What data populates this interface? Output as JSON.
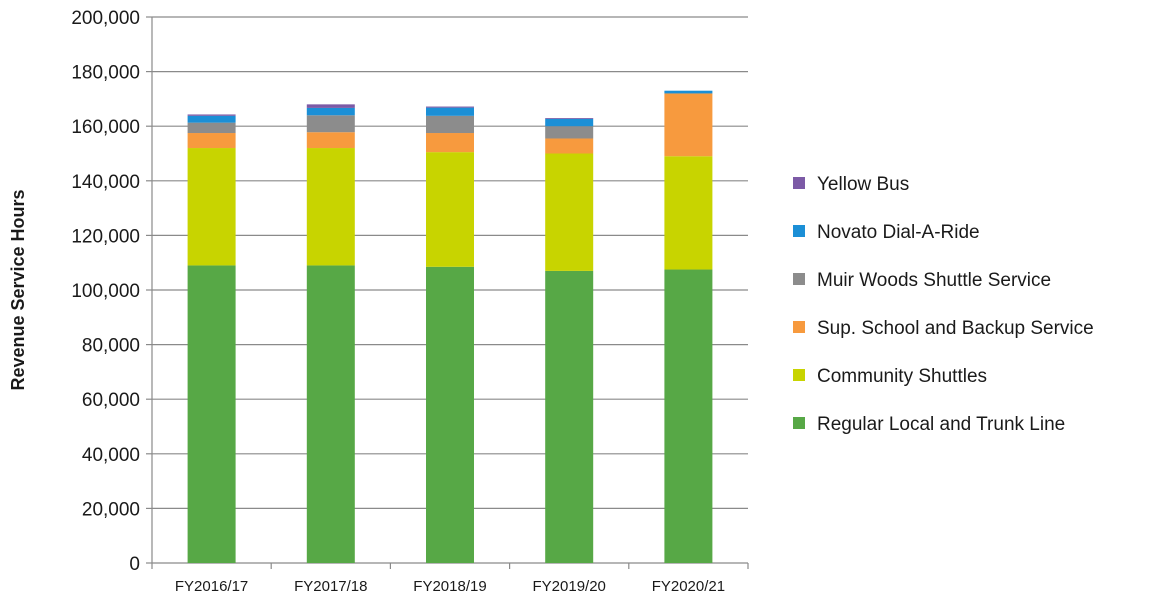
{
  "chart_data": {
    "type": "bar",
    "stacked": true,
    "title": "",
    "xlabel": "",
    "ylabel": "Revenue Service Hours",
    "ylim": [
      0,
      200000
    ],
    "yticks": [
      0,
      20000,
      40000,
      60000,
      80000,
      100000,
      120000,
      140000,
      160000,
      180000,
      200000
    ],
    "ytick_labels": [
      "0",
      "20,000",
      "40,000",
      "60,000",
      "80,000",
      "100,000",
      "120,000",
      "140,000",
      "160,000",
      "180,000",
      "200,000"
    ],
    "grid": true,
    "legend_position": "right",
    "categories": [
      "FY2016/17",
      "FY2017/18",
      "FY2018/19",
      "FY2019/20",
      "FY2020/21"
    ],
    "series": [
      {
        "name": "Regular Local and Trunk Line",
        "color": "#57a846",
        "values": [
          109000,
          109000,
          108500,
          107000,
          107500
        ]
      },
      {
        "name": "Community Shuttles",
        "color": "#c8d400",
        "values": [
          43000,
          43000,
          42000,
          43000,
          41500
        ]
      },
      {
        "name": "Sup. School and Backup Service",
        "color": "#f79a3e",
        "values": [
          5500,
          5800,
          7000,
          5500,
          23000
        ]
      },
      {
        "name": "Muir Woods Shuttle Service",
        "color": "#8c8c8c",
        "values": [
          3800,
          6200,
          6300,
          4500,
          0
        ]
      },
      {
        "name": "Novato Dial-A-Ride",
        "color": "#1b8fd6",
        "values": [
          2500,
          2700,
          3000,
          2700,
          1000
        ]
      },
      {
        "name": "Yellow Bus",
        "color": "#7c5aa6",
        "values": [
          500,
          1300,
          400,
          300,
          0
        ]
      }
    ]
  }
}
